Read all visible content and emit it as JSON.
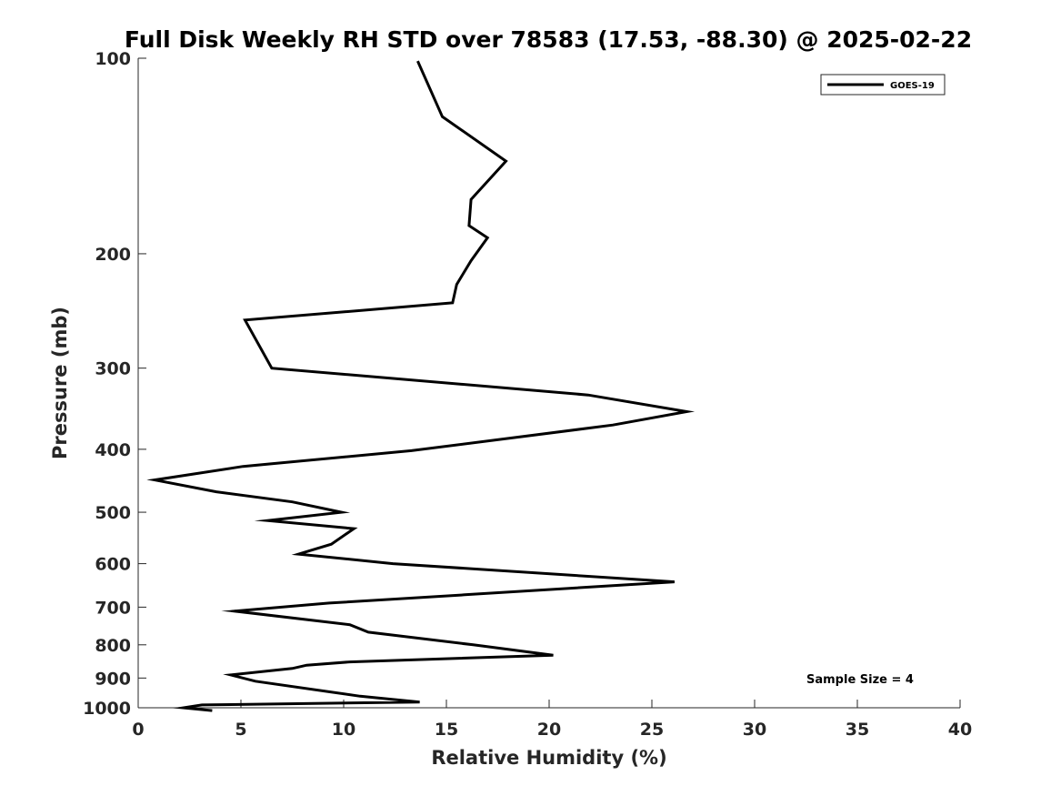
{
  "chart_data": {
    "type": "line",
    "title": "Full Disk Weekly RH STD over 78583 (17.53, -88.30) @ 2025-02-22",
    "xlabel": "Relative Humidity (%)",
    "ylabel": "Pressure (mb)",
    "xlim": [
      0,
      40
    ],
    "ylim": [
      1000,
      100
    ],
    "y_scale": "log",
    "y_reversed": true,
    "x_ticks": [
      "0",
      "5",
      "10",
      "15",
      "20",
      "25",
      "30",
      "35",
      "40"
    ],
    "y_ticks": [
      "100",
      "200",
      "300",
      "400",
      "500",
      "600",
      "700",
      "800",
      "900",
      "1000"
    ],
    "grid": false,
    "legend": {
      "placement": "top-right",
      "entries": [
        "GOES-19"
      ]
    },
    "annotation": "Sample Size = 4",
    "series": [
      {
        "name": "GOES-19",
        "color": "#000000",
        "x": [
          13.6,
          14.8,
          17.9,
          16.2,
          16.1,
          17.0,
          16.2,
          15.5,
          15.3,
          5.2,
          6.5,
          21.9,
          26.7,
          23.1,
          13.3,
          5.1,
          0.8,
          3.8,
          7.5,
          9.9,
          6.3,
          10.5,
          9.4,
          7.8,
          12.4,
          26.1,
          15.9,
          9.3,
          4.7,
          10.3,
          11.2,
          16.3,
          20.2,
          10.3,
          8.2,
          7.5,
          4.5,
          5.7,
          10.8,
          13.7,
          3.1,
          2.2,
          3.6
        ],
        "y": [
          101,
          123,
          144,
          165,
          181,
          189,
          205,
          223,
          238,
          253,
          300,
          330,
          350,
          367,
          402,
          425,
          446,
          465,
          482,
          500,
          515,
          530,
          560,
          580,
          600,
          640,
          670,
          690,
          710,
          745,
          765,
          800,
          830,
          850,
          860,
          870,
          890,
          910,
          960,
          980,
          990,
          1000,
          1010
        ]
      }
    ]
  }
}
